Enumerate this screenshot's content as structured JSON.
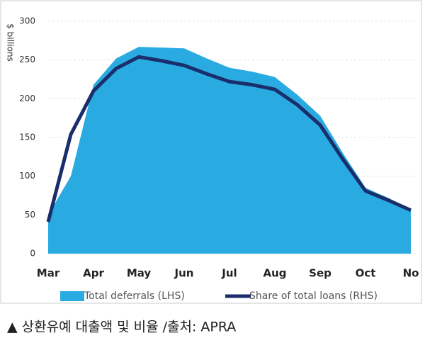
{
  "chart_data": {
    "type": "area_line",
    "y_label": "$ billions",
    "categories": [
      "Mar",
      null,
      "Apr",
      null,
      "May",
      null,
      "Jun",
      null,
      "Jul",
      null,
      "Aug",
      null,
      "Sep",
      null,
      "Oct",
      null,
      "No"
    ],
    "series": [
      {
        "name": "Total deferrals (LHS)",
        "color": "#29abe2",
        "kind": "area",
        "values": [
          50,
          100,
          218,
          252,
          267,
          266,
          265,
          252,
          240,
          235,
          228,
          205,
          178,
          130,
          85,
          72,
          57
        ]
      },
      {
        "name": "Share of total loans (RHS)",
        "color": "#1a2e6b",
        "kind": "line",
        "values": [
          41,
          154,
          210,
          239,
          254,
          249,
          243,
          232,
          222,
          218,
          212,
          192,
          166,
          122,
          81,
          69,
          56
        ]
      }
    ],
    "ylim": [
      0,
      300
    ],
    "yticks": [
      0,
      50,
      100,
      150,
      200,
      250,
      300
    ],
    "grid": true,
    "caption": "▲ 상환유예 대출액 및 비율 /출처: APRA"
  }
}
